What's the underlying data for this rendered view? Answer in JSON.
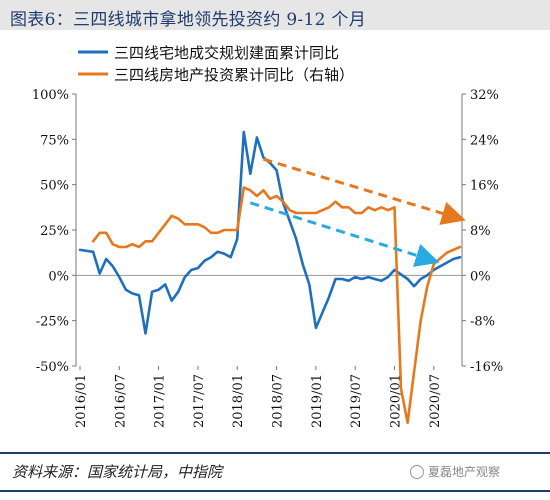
{
  "header": {
    "title": "图表6：三四线城市拿地领先投资约 9-12 个月"
  },
  "footer": {
    "source": "资料来源：国家统计局，中指院",
    "watermark": "夏磊地产观察"
  },
  "chart_data": {
    "type": "line",
    "title": "图表6：三四线城市拿地领先投资约 9-12 个月",
    "y_left": {
      "ticks": [
        "100%",
        "75%",
        "50%",
        "25%",
        "0%",
        "-25%",
        "-50%"
      ],
      "min": -50,
      "max": 100
    },
    "y_right": {
      "ticks": [
        "32%",
        "24%",
        "16%",
        "8%",
        "0%",
        "-8%",
        "-16%"
      ],
      "min": -16,
      "max": 32
    },
    "x_ticks": [
      "2016/01",
      "2016/07",
      "2017/01",
      "2017/07",
      "2018/01",
      "2018/07",
      "2019/01",
      "2019/07",
      "2020/01",
      "2020/07"
    ],
    "legend_position": "top",
    "series": [
      {
        "name": "三四线宅地成交规划建面累计同比",
        "color": "#1f6fbf",
        "axis": "left",
        "unit": "%",
        "x": [
          "2016/01",
          "2016/03",
          "2016/04",
          "2016/05",
          "2016/06",
          "2016/07",
          "2016/08",
          "2016/09",
          "2016/10",
          "2016/11",
          "2016/12",
          "2017/01",
          "2017/02",
          "2017/03",
          "2017/04",
          "2017/05",
          "2017/06",
          "2017/07",
          "2017/08",
          "2017/09",
          "2017/10",
          "2017/11",
          "2017/12",
          "2018/01",
          "2018/02",
          "2018/03",
          "2018/04",
          "2018/05",
          "2018/06",
          "2018/07",
          "2018/08",
          "2018/09",
          "2018/10",
          "2018/11",
          "2018/12",
          "2019/01",
          "2019/03",
          "2019/04",
          "2019/05",
          "2019/06",
          "2019/07",
          "2019/08",
          "2019/09",
          "2019/10",
          "2019/11",
          "2019/12",
          "2020/01",
          "2020/03",
          "2020/04",
          "2020/05",
          "2020/06",
          "2020/07",
          "2020/08",
          "2020/09",
          "2020/10",
          "2020/11"
        ],
        "values": [
          14,
          13,
          1,
          9,
          5,
          -1,
          -8,
          -10,
          -11,
          -32,
          -9,
          -8,
          -5,
          -14,
          -9,
          -1,
          3,
          4,
          8,
          10,
          13,
          12,
          10,
          20,
          79,
          56,
          76,
          65,
          62,
          58,
          40,
          30,
          20,
          6,
          -5,
          -29,
          -12,
          -2,
          -2,
          -3,
          -1,
          -2,
          -1,
          -2,
          -3,
          -1,
          3,
          -2,
          -6,
          -2,
          0,
          3,
          5,
          7,
          9,
          10
        ]
      },
      {
        "name": "三四线房地产投资累计同比（右轴）",
        "color": "#e6781e",
        "axis": "right",
        "unit": "%",
        "x": [
          "2016/03",
          "2016/04",
          "2016/05",
          "2016/06",
          "2016/07",
          "2016/08",
          "2016/09",
          "2016/10",
          "2016/11",
          "2016/12",
          "2017/02",
          "2017/03",
          "2017/04",
          "2017/05",
          "2017/06",
          "2017/07",
          "2017/08",
          "2017/09",
          "2017/10",
          "2017/11",
          "2017/12",
          "2018/01",
          "2018/02",
          "2018/03",
          "2018/04",
          "2018/05",
          "2018/06",
          "2018/07",
          "2018/08",
          "2018/09",
          "2018/10",
          "2018/11",
          "2018/12",
          "2019/01",
          "2019/03",
          "2019/04",
          "2019/05",
          "2019/06",
          "2019/07",
          "2019/08",
          "2019/09",
          "2019/10",
          "2019/11",
          "2019/12",
          "2020/01",
          "2020/02",
          "2020/03",
          "2020/04",
          "2020/05",
          "2020/06",
          "2020/07",
          "2020/08",
          "2020/09",
          "2020/10",
          "2020/11"
        ],
        "values": [
          6,
          7.5,
          7.5,
          5.5,
          5,
          5,
          5.5,
          5,
          6,
          6,
          9,
          10.5,
          10,
          9,
          9,
          9,
          8.5,
          7.5,
          7.5,
          8,
          8,
          8,
          15.5,
          15,
          14,
          15,
          13.5,
          14,
          13,
          11.5,
          11,
          11,
          11,
          11,
          12,
          13,
          12,
          12,
          11,
          11,
          12,
          11.5,
          12,
          11.5,
          12,
          -20,
          -26,
          -17,
          -8,
          -2,
          2,
          3,
          4,
          4.5,
          5
        ]
      }
    ],
    "trend_arrows": [
      {
        "series": "三四线宅地成交规划建面累计同比",
        "color": "#29aae1",
        "style": "dashed",
        "direction": "down"
      },
      {
        "series": "三四线房地产投资累计同比（右轴）",
        "color": "#e6781e",
        "style": "dashed",
        "direction": "down"
      }
    ]
  }
}
